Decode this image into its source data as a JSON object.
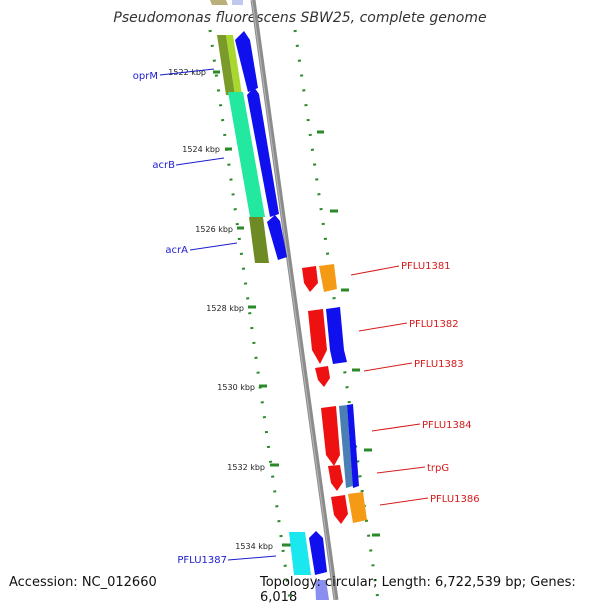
{
  "title": "Pseudomonas fluorescens SBW25, complete genome",
  "footer": {
    "accession": "Accession: NC_012660",
    "topology": "Topology: circular; Length: 6,722,539 bp; Genes: 6,018"
  },
  "colors": {
    "backbone": "#888888",
    "tick": "#2a8a2a",
    "label_left": "#1c1ccc",
    "label_right": "#d61a1a",
    "forward_blue": "#1010ee",
    "reverse_red": "#ee1111",
    "orange": "#f59a14",
    "steel": "#4a7fb6",
    "cyan": "#1ae8ee",
    "olive": "#7a9a2a",
    "lime": "#a8d830",
    "mint": "#22e8a0",
    "tan": "#b8b078"
  },
  "scale_labels": [
    "1522 kbp",
    "1524 kbp",
    "1526 kbp",
    "1528 kbp",
    "1530 kbp",
    "1532 kbp",
    "1534 kbp"
  ],
  "genes_left": [
    {
      "name": "oprM"
    },
    {
      "name": "acrB"
    },
    {
      "name": "acrA"
    },
    {
      "name": "PFLU1387"
    }
  ],
  "genes_right": [
    {
      "name": "PFLU1381"
    },
    {
      "name": "PFLU1382"
    },
    {
      "name": "PFLU1383"
    },
    {
      "name": "PFLU1384"
    },
    {
      "name": "trpG"
    },
    {
      "name": "PFLU1386"
    }
  ]
}
